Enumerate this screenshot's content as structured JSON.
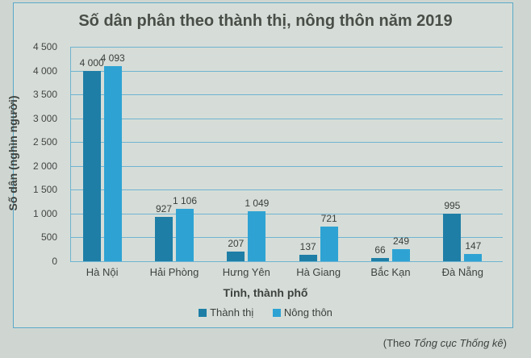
{
  "chart_data": {
    "type": "bar",
    "title": "Số dân phân theo thành thị, nông thôn năm 2019",
    "xlabel": "Tỉnh, thành phố",
    "ylabel": "Số dân (nghìn người)",
    "categories": [
      "Hà Nội",
      "Hải Phòng",
      "Hưng Yên",
      "Hà Giang",
      "Bắc Kạn",
      "Đà Nẵng"
    ],
    "series": [
      {
        "name": "Thành thị",
        "color": "#1e7ea6",
        "values": [
          4000,
          927,
          207,
          137,
          66,
          995
        ],
        "labels": [
          "4 000",
          "927",
          "207",
          "137",
          "66",
          "995"
        ]
      },
      {
        "name": "Nông thôn",
        "color": "#2ea3d3",
        "values": [
          4093,
          1106,
          1049,
          721,
          249,
          147
        ],
        "labels": [
          "4 093",
          "1 106",
          "1 049",
          "721",
          "249",
          "147"
        ]
      }
    ],
    "ylim": [
      0,
      4500
    ],
    "yticks": [
      "0",
      "500",
      "1 000",
      "1 500",
      "2 000",
      "2 500",
      "3 000",
      "3 500",
      "4 000",
      "4 500"
    ],
    "grid": true,
    "legend_position": "bottom"
  },
  "source": {
    "prefix": "(Theo ",
    "name": "Tổng cục Thống kê",
    "suffix": ")"
  }
}
